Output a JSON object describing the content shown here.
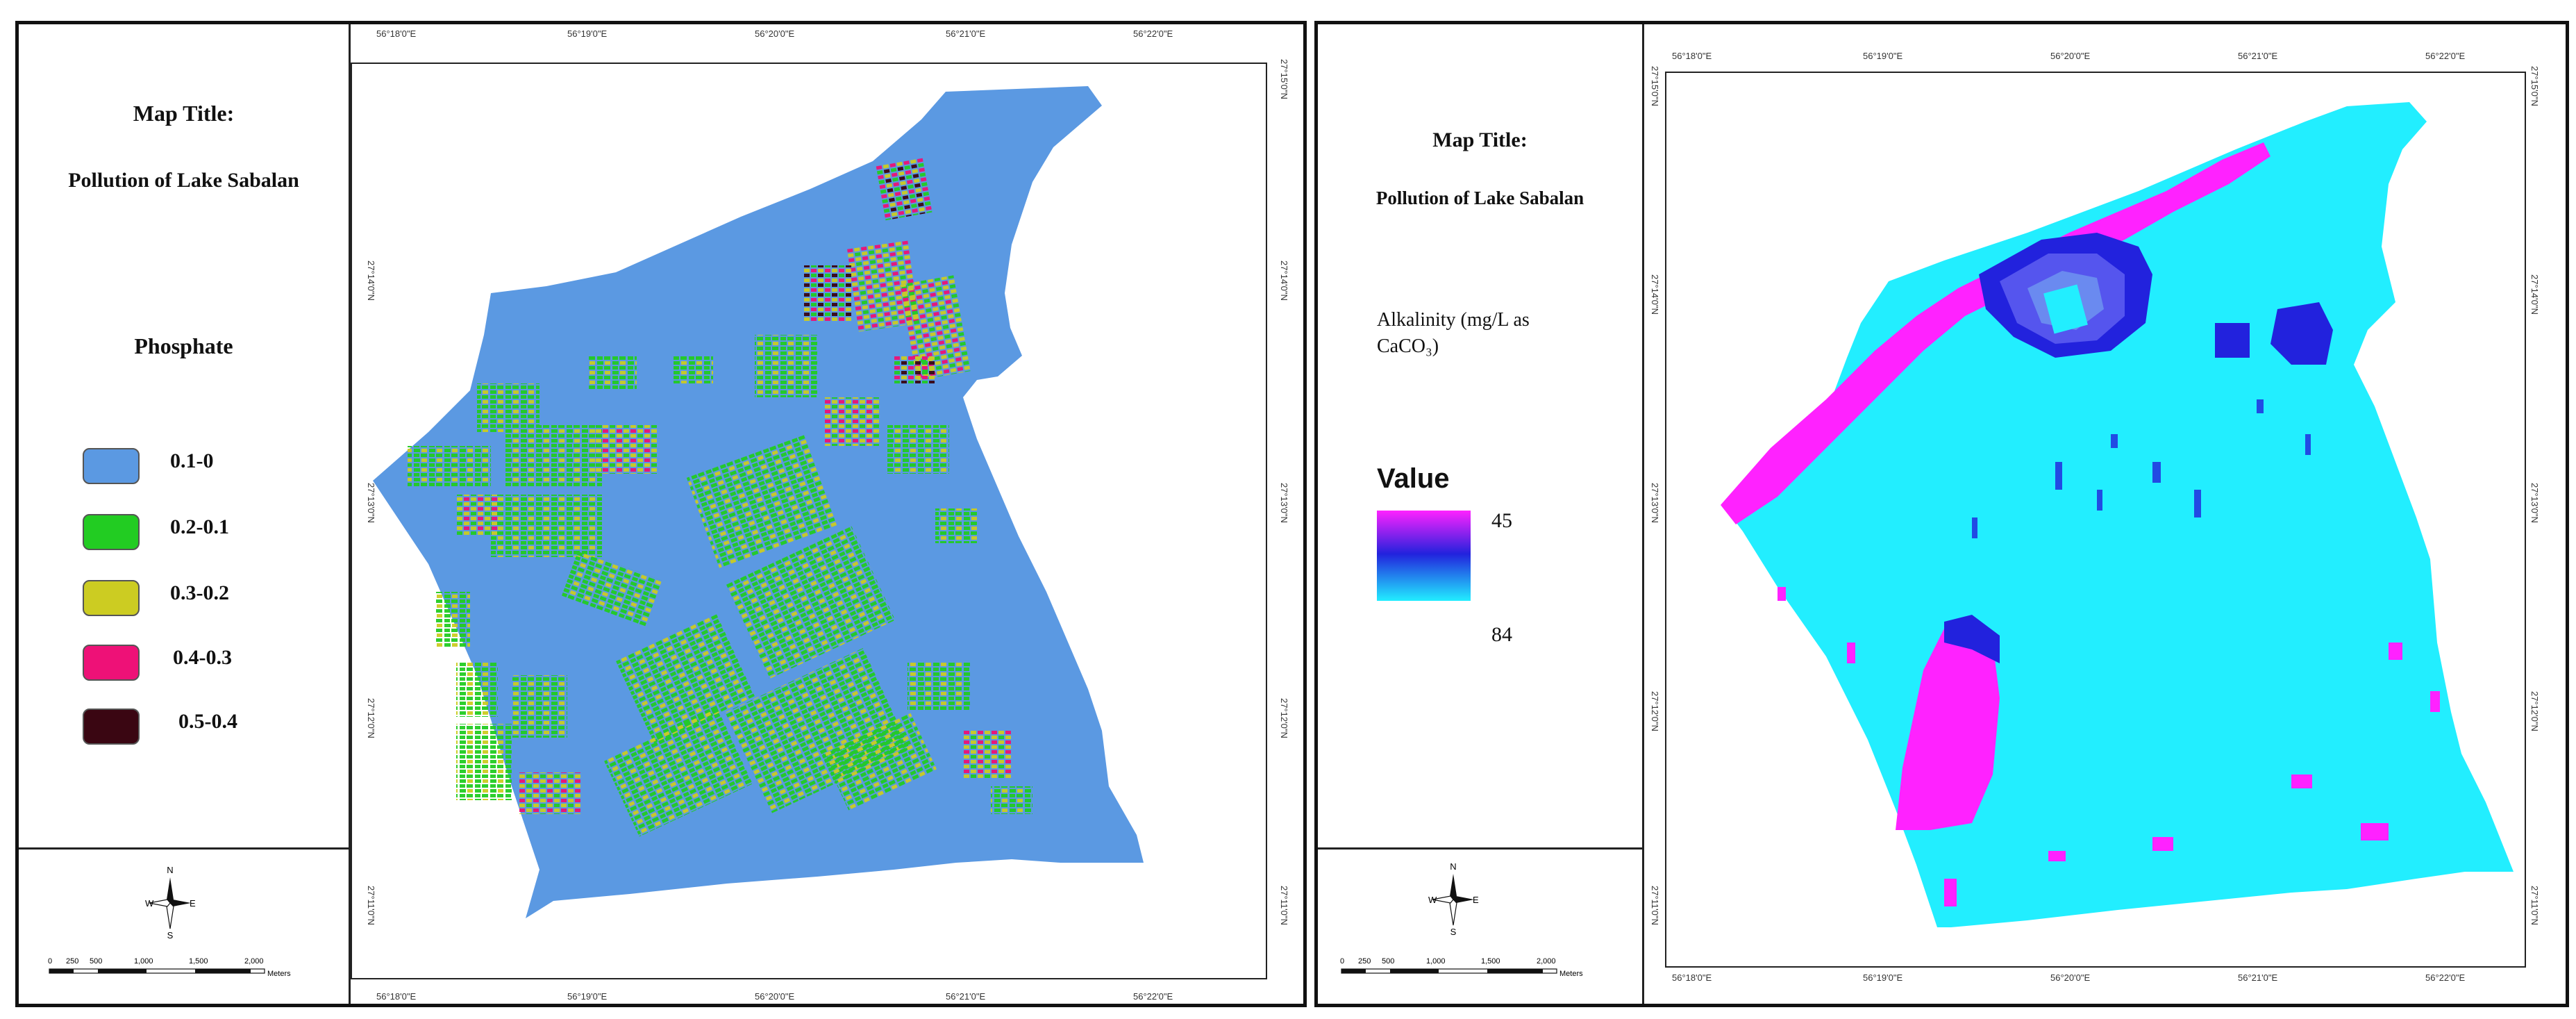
{
  "left_map": {
    "map_title_label": "Map Title:",
    "map_title": "Pollution of Lake Sabalan",
    "legend_title": "Phosphate",
    "legend": [
      {
        "label": "0.1-0",
        "color": "#5b99e2"
      },
      {
        "label": "0.2-0.1",
        "color": "#22cc22"
      },
      {
        "label": "0.3-0.2",
        "color": "#cccc22"
      },
      {
        "label": "0.4-0.3",
        "color": "#ee1177"
      },
      {
        "label": "0.5-0.4",
        "color": "#3a0612"
      }
    ],
    "north": {
      "n": "N",
      "s": "S",
      "e": "E",
      "w": "W"
    },
    "scale_labels": [
      "0",
      "250",
      "500",
      "1,000",
      "1,500",
      "2,000"
    ],
    "scale_unit": "Meters",
    "top_ticks": [
      "56°18'0\"E",
      "56°19'0\"E",
      "56°20'0\"E",
      "56°21'0\"E",
      "56°22'0\"E"
    ],
    "bottom_ticks": [
      "56°18'0\"E",
      "56°19'0\"E",
      "56°20'0\"E",
      "56°21'0\"E",
      "56°22'0\"E"
    ],
    "left_ticks": [
      "27°14'0\"N",
      "27°13'0\"N",
      "27°12'0\"N",
      "27°11'0\"N"
    ],
    "right_ticks": [
      "27°15'0\"N",
      "27°14'0\"N",
      "27°13'0\"N",
      "27°12'0\"N",
      "27°11'0\"N"
    ]
  },
  "right_map": {
    "map_title_label": "Map Title:",
    "map_title": "Pollution of Lake Sabalan",
    "legend_title_line1": "Alkalinity (mg/L as",
    "legend_title_line2": "CaCO₃)",
    "value_label": "Value",
    "gradient_max": "45",
    "gradient_min": "84",
    "gradient_colors": [
      "#ff22ff",
      "#2222dd",
      "#22eeff"
    ],
    "north": {
      "n": "N",
      "s": "S",
      "e": "E",
      "w": "W"
    },
    "scale_labels": [
      "0",
      "250",
      "500",
      "1,000",
      "1,500",
      "2,000"
    ],
    "scale_unit": "Meters",
    "top_ticks": [
      "56°18'0\"E",
      "56°19'0\"E",
      "56°20'0\"E",
      "56°21'0\"E",
      "56°22'0\"E"
    ],
    "bottom_ticks": [
      "56°18'0\"E",
      "56°19'0\"E",
      "56°20'0\"E",
      "56°21'0\"E",
      "56°22'0\"E"
    ],
    "left_ticks": [
      "27°15'0\"N",
      "27°14'0\"N",
      "27°13'0\"N",
      "27°12'0\"N",
      "27°11'0\"N"
    ],
    "right_ticks": [
      "27°15'0\"N",
      "27°14'0\"N",
      "27°13'0\"N",
      "27°12'0\"N",
      "27°11'0\"N"
    ]
  }
}
